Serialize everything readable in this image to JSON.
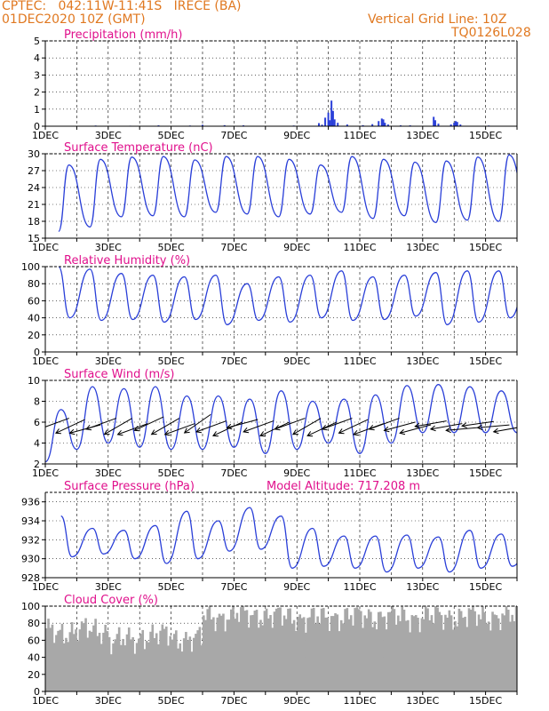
{
  "header": {
    "line1": "CPTEC:   042:11W-11:41S   IRECE (BA)",
    "line2": "01DEC2020 10Z (GMT)",
    "right1": "Vertical Grid Line: 10Z",
    "right2": "TQ0126L028"
  },
  "colors": {
    "header": "#e07820",
    "title": "#e0108c",
    "line": "#2a3fd8",
    "cloud": "#a8a8a8",
    "wind_vector": "#000000"
  },
  "xaxis": {
    "ticks": [
      "1DEC",
      "3DEC",
      "5DEC",
      "7DEC",
      "9DEC",
      "11DEC",
      "13DEC",
      "15DEC"
    ],
    "tick_days": [
      0,
      2,
      4,
      6,
      8,
      10,
      12,
      14
    ],
    "range_days": [
      0,
      15.0
    ],
    "vertical_grid": "dashed, daily at 10Z"
  },
  "chart_data": [
    {
      "type": "bar",
      "title": "Precipitation (mm/h)",
      "ylim": [
        0,
        5
      ],
      "yticks": [
        0,
        1,
        2,
        3,
        4,
        5
      ],
      "color": "#2a3fd8",
      "bars": [
        [
          1.6,
          0.04
        ],
        [
          2.7,
          0.03
        ],
        [
          3.6,
          0.05
        ],
        [
          4.6,
          0.04
        ],
        [
          5.0,
          0.08
        ],
        [
          5.7,
          0.06
        ],
        [
          6.3,
          0.05
        ],
        [
          7.9,
          0.04
        ],
        [
          8.7,
          0.18
        ],
        [
          8.8,
          0.09
        ],
        [
          8.9,
          0.5
        ],
        [
          9.0,
          0.8
        ],
        [
          9.05,
          0.35
        ],
        [
          9.1,
          1.5
        ],
        [
          9.15,
          0.9
        ],
        [
          9.2,
          0.4
        ],
        [
          9.3,
          0.2
        ],
        [
          9.6,
          0.1
        ],
        [
          10.1,
          0.06
        ],
        [
          10.4,
          0.12
        ],
        [
          10.6,
          0.3
        ],
        [
          10.7,
          0.45
        ],
        [
          10.75,
          0.4
        ],
        [
          10.8,
          0.2
        ],
        [
          10.9,
          0.1
        ],
        [
          11.3,
          0.05
        ],
        [
          11.6,
          0.05
        ],
        [
          12.35,
          0.55
        ],
        [
          12.4,
          0.35
        ],
        [
          12.5,
          0.15
        ],
        [
          12.9,
          0.1
        ],
        [
          13.0,
          0.2
        ],
        [
          13.05,
          0.3
        ],
        [
          13.1,
          0.25
        ],
        [
          13.2,
          0.1
        ],
        [
          14.1,
          0.04
        ]
      ]
    },
    {
      "type": "line",
      "title": "Surface Temperature (nC)",
      "ylim": [
        15,
        30
      ],
      "yticks": [
        15,
        18,
        21,
        24,
        27,
        30
      ],
      "daily_min": [
        16.2,
        17.0,
        18.8,
        19.0,
        18.8,
        19.6,
        19.3,
        18.8,
        19.3,
        19.6,
        18.5,
        19.0,
        17.8,
        18.2,
        18.0
      ],
      "daily_max": [
        28.0,
        29.0,
        29.4,
        29.5,
        28.9,
        29.5,
        29.5,
        29.0,
        28.0,
        29.5,
        29.0,
        28.5,
        28.7,
        29.4,
        29.8
      ]
    },
    {
      "type": "line",
      "title": "Relative Humidity (%)",
      "ylim": [
        0,
        100
      ],
      "yticks": [
        0,
        20,
        40,
        60,
        80,
        100
      ],
      "daily_max": [
        100,
        97,
        92,
        90,
        88,
        90,
        80,
        88,
        90,
        95,
        88,
        90,
        93,
        95,
        95
      ],
      "daily_min": [
        40,
        37,
        38,
        35,
        38,
        32,
        37,
        35,
        40,
        37,
        38,
        42,
        32,
        35,
        40
      ]
    },
    {
      "type": "line",
      "title": "Surface Wind (m/s)",
      "ylim": [
        2,
        10
      ],
      "yticks": [
        2,
        4,
        6,
        8,
        10
      ],
      "daily_max": [
        7.2,
        9.4,
        9.2,
        9.4,
        8.5,
        8.5,
        8.2,
        9.0,
        8.0,
        8.2,
        8.6,
        9.5,
        9.6,
        9.4,
        9.0
      ],
      "daily_min": [
        2.2,
        3.4,
        4.0,
        3.6,
        3.4,
        3.4,
        3.6,
        3.0,
        3.4,
        4.0,
        3.0,
        4.0,
        5.0,
        5.0,
        5.0
      ],
      "vector_days": [
        0.25,
        0.75,
        1.25,
        1.75,
        2.25,
        2.75,
        3.25,
        3.75,
        4.25,
        4.75,
        5.25,
        5.75,
        6.25,
        6.75,
        7.25,
        7.75,
        8.25,
        8.75,
        9.25,
        9.75,
        10.25,
        10.75,
        11.25,
        11.75,
        12.25,
        12.75,
        13.25,
        13.75,
        14.25,
        14.75
      ],
      "vector_directions_deg": [
        20,
        25,
        15,
        20,
        30,
        20,
        25,
        30,
        20,
        35,
        20,
        25,
        15,
        20,
        25,
        20,
        30,
        25,
        20,
        25,
        20,
        20,
        15,
        15,
        10,
        10,
        5,
        8,
        5,
        10
      ]
    },
    {
      "type": "line",
      "title": "Surface Pressure (hPa)",
      "annotation": "Model Altitude: 717.208  m",
      "ylim": [
        928,
        937
      ],
      "yticks": [
        928,
        930,
        932,
        934,
        936
      ],
      "daily_max": [
        934.5,
        933.2,
        933.0,
        933.5,
        935.0,
        934.0,
        935.4,
        934.5,
        933.2,
        932.4,
        932.4,
        932.5,
        932.3,
        933.0,
        932.6
      ],
      "daily_min": [
        930.2,
        930.5,
        930.0,
        929.5,
        930.0,
        930.8,
        931.0,
        929.0,
        929.2,
        929.0,
        928.6,
        929.0,
        928.6,
        929.0,
        929.2
      ]
    },
    {
      "type": "bar",
      "title": "Cloud Cover (%)",
      "ylim": [
        0,
        100
      ],
      "yticks": [
        0,
        20,
        40,
        60,
        80,
        100
      ],
      "color": "#a8a8a8",
      "daily_mean": [
        70,
        72,
        60,
        66,
        62,
        88,
        90,
        88,
        86,
        88,
        88,
        87,
        88,
        88,
        88
      ]
    }
  ]
}
